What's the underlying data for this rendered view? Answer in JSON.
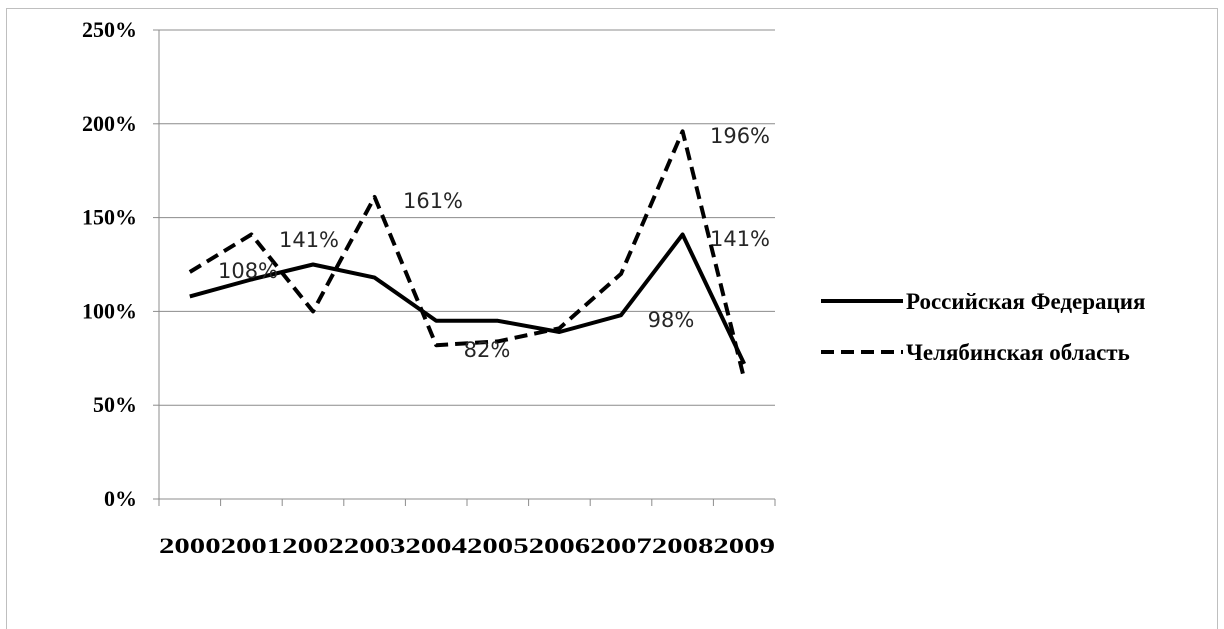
{
  "chart_data": {
    "type": "line",
    "title": "",
    "xlabel": "",
    "ylabel": "",
    "ylim": [
      0,
      250
    ],
    "y_ticks": [
      0,
      50,
      100,
      150,
      200,
      250
    ],
    "y_tick_labels": [
      "0%",
      "50%",
      "100%",
      "150%",
      "200%",
      "250%"
    ],
    "grid": "horizontal",
    "legend_position": "right",
    "categories": [
      "2000",
      "2001",
      "2002",
      "2003",
      "2004",
      "2005",
      "2006",
      "2007",
      "2008",
      "2009"
    ],
    "series": [
      {
        "name": "Российская Федерация",
        "style": "solid",
        "color": "#000000",
        "values": [
          108,
          117,
          125,
          118,
          95,
          95,
          89,
          98,
          141,
          72
        ]
      },
      {
        "name": "Челябинская область",
        "style": "dashed",
        "color": "#000000",
        "values": [
          121,
          141,
          100,
          161,
          82,
          84,
          91,
          120,
          196,
          64
        ]
      }
    ],
    "annotations": [
      {
        "text": "108%",
        "x": "2000"
      },
      {
        "text": "141%",
        "x": "2001"
      },
      {
        "text": "161%",
        "x": "2003"
      },
      {
        "text": "82%",
        "x": "2004"
      },
      {
        "text": "98%",
        "x": "2007"
      },
      {
        "text": "196%",
        "x": "2008"
      },
      {
        "text": "141%",
        "x": "2008"
      }
    ]
  }
}
